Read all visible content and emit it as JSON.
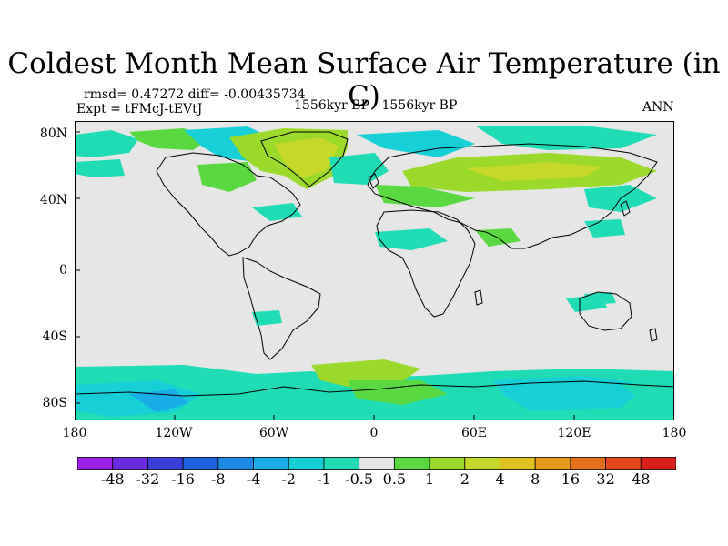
{
  "title": "Coldest Month Mean Surface Air Temperature (in C)",
  "stats": "rmsd= 0.47272  diff= -0.00435734",
  "experiment": "Expt = tFMcJ-tEVtJ",
  "period": "1556kyr BP - 1556kyr BP",
  "season": "ANN",
  "axes": {
    "y_labels": [
      "80N",
      "40N",
      "0",
      "40S",
      "80S"
    ],
    "x_labels": [
      "180",
      "120W",
      "60W",
      "0",
      "60E",
      "120E",
      "180"
    ]
  },
  "colorbar": {
    "labels": [
      "-48",
      "-32",
      "-16",
      "-8",
      "-4",
      "-2",
      "-1",
      "-0.5",
      "0.5",
      "1",
      "2",
      "4",
      "8",
      "16",
      "32",
      "48"
    ],
    "colors": [
      "#9b1fe8",
      "#6a2be0",
      "#3b3fd9",
      "#1f62e0",
      "#1a8ae6",
      "#19aee8",
      "#17cfd6",
      "#1fdcb5",
      "#e6e6e6",
      "#5ad83f",
      "#9bd92a",
      "#c6d92a",
      "#e0c21f",
      "#e69a1a",
      "#e6701a",
      "#e4471a",
      "#d91f1a"
    ]
  },
  "chart_data": {
    "type": "heatmap",
    "title": "Coldest Month Mean Surface Air Temperature (in C)",
    "x_range": [
      -180,
      180
    ],
    "y_range": [
      -90,
      90
    ],
    "xlabel": "",
    "ylabel": "",
    "background_level": "-0.5 to 0.5",
    "regions": [
      {
        "name_text": "",
        "lon": [
          -180,
          -150
        ],
        "lat": [
          60,
          85
        ],
        "value": -1
      },
      {
        "lon": [
          -150,
          -90
        ],
        "lat": [
          60,
          85
        ],
        "value": -0.8
      },
      {
        "lon": [
          -75,
          -20
        ],
        "lat": [
          60,
          84
        ],
        "value": 1.5
      },
      {
        "lon": [
          -20,
          30
        ],
        "lat": [
          65,
          85
        ],
        "value": -1
      },
      {
        "lon": [
          30,
          110
        ],
        "lat": [
          45,
          70
        ],
        "value": 1
      },
      {
        "lon": [
          110,
          180
        ],
        "lat": [
          60,
          80
        ],
        "value": -1
      },
      {
        "lon": [
          -180,
          180
        ],
        "lat": [
          -90,
          -60
        ],
        "value": -1
      },
      {
        "lon": [
          -30,
          60
        ],
        "lat": [
          -75,
          -55
        ],
        "value": 1
      }
    ]
  }
}
